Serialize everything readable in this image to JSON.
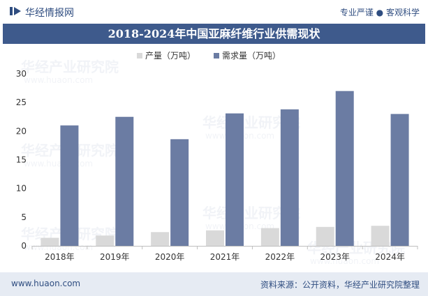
{
  "header": {
    "brand": "华经情报网",
    "tagline_left": "专业严谨",
    "tagline_sep": "●",
    "tagline_right": "客观科学"
  },
  "watermark": {
    "text": "华经产业研究院",
    "url": "www.huaon.com"
  },
  "footer": {
    "url": "www.huaon.com",
    "source": "资料来源：公开资料，华经产业研究院整理"
  },
  "colors": {
    "title_bg": "#3e5a8c",
    "demand": "#6b7ca3",
    "production": "#d9d9d9",
    "footer_bg": "#e6ebf3",
    "accent": "#2f4d80"
  },
  "chart_data": {
    "type": "bar",
    "title": "2018-2024年中国亚麻纤维行业供需现状",
    "categories": [
      "2018年",
      "2019年",
      "2020年",
      "2021年",
      "2022年",
      "2023年",
      "2024年"
    ],
    "series": [
      {
        "name": "产量（万吨）",
        "values": [
          1.4,
          1.8,
          2.4,
          2.7,
          3.1,
          3.3,
          3.5
        ]
      },
      {
        "name": "需求量（万吨）",
        "values": [
          21.0,
          22.5,
          18.6,
          23.1,
          23.8,
          27.0,
          23.0
        ]
      }
    ],
    "ylim": [
      0,
      30
    ],
    "yticks": [
      0,
      5,
      10,
      15,
      20,
      25,
      30
    ],
    "legend": "top-center",
    "grid": false
  }
}
